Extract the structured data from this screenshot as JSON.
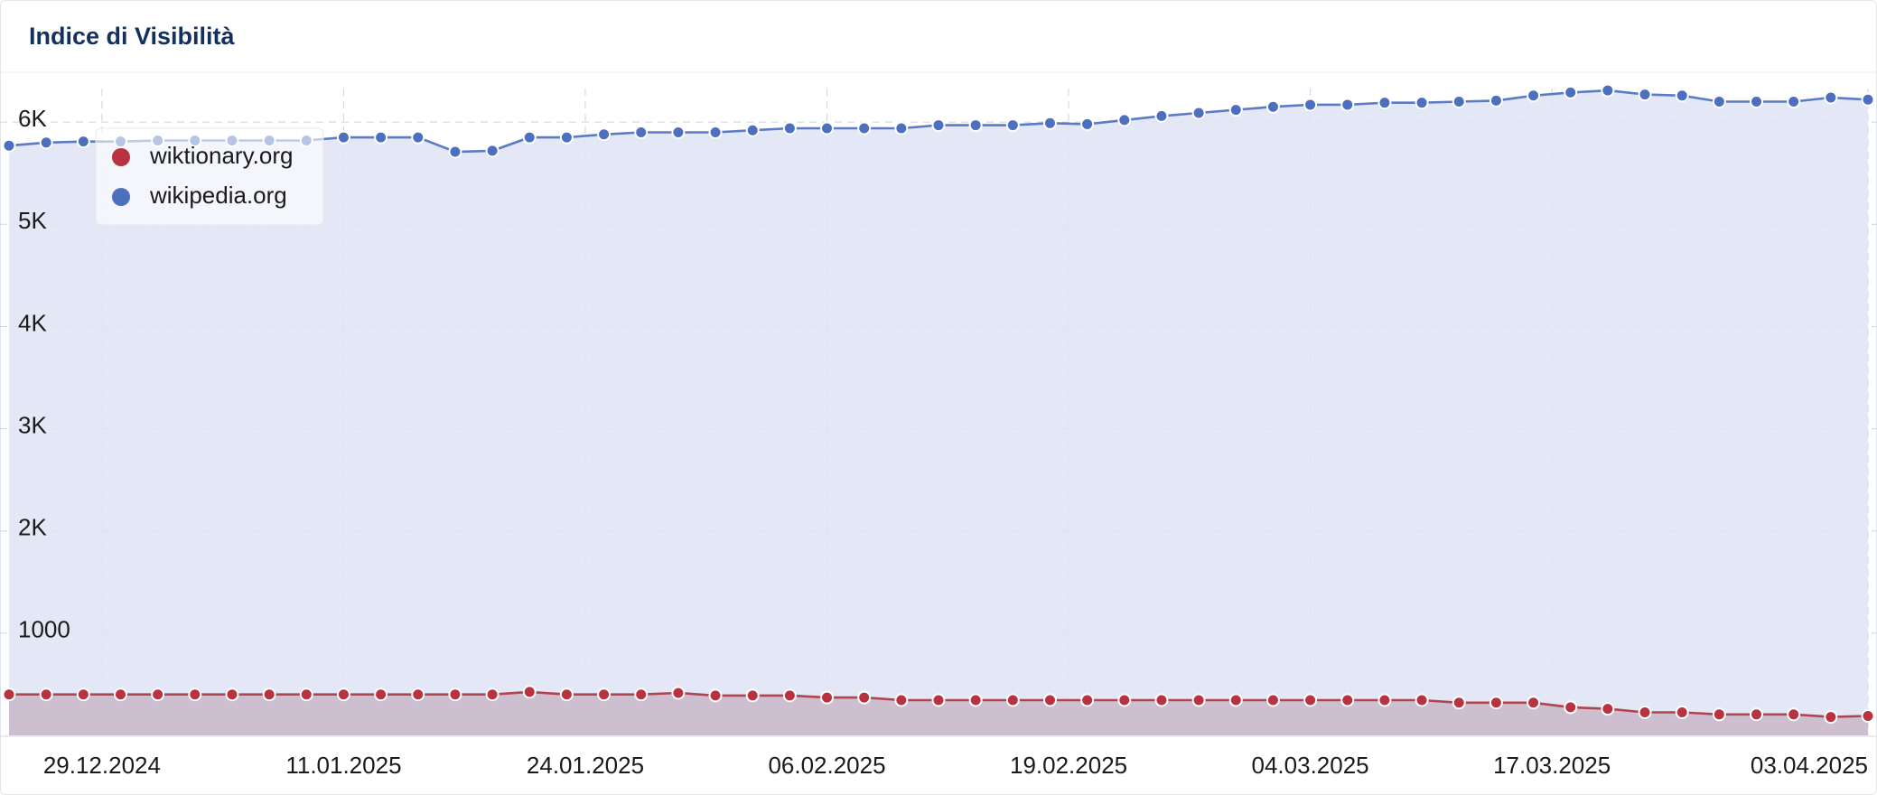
{
  "chart_data": {
    "type": "line",
    "title": "Indice di Visibilità",
    "x": [
      "24.12.2024",
      "26.12.2024",
      "28.12.2024",
      "30.12.2024",
      "01.01.2025",
      "03.01.2025",
      "05.01.2025",
      "07.01.2025",
      "09.01.2025",
      "11.01.2025",
      "13.01.2025",
      "15.01.2025",
      "17.01.2025",
      "19.01.2025",
      "21.01.2025",
      "23.01.2025",
      "25.01.2025",
      "27.01.2025",
      "29.01.2025",
      "31.01.2025",
      "02.02.2025",
      "04.02.2025",
      "06.02.2025",
      "08.02.2025",
      "10.02.2025",
      "12.02.2025",
      "14.02.2025",
      "16.02.2025",
      "18.02.2025",
      "20.02.2025",
      "22.02.2025",
      "24.02.2025",
      "26.02.2025",
      "28.02.2025",
      "02.03.2025",
      "04.03.2025",
      "06.03.2025",
      "08.03.2025",
      "10.03.2025",
      "12.03.2025",
      "14.03.2025",
      "16.03.2025",
      "18.03.2025",
      "20.03.2025",
      "22.03.2025",
      "24.03.2025",
      "26.03.2025",
      "28.03.2025",
      "30.03.2025",
      "01.04.2025",
      "03.04.2025"
    ],
    "series": [
      {
        "name": "wiktionary.org",
        "color": "#b8333f",
        "line_color": "#b0444f",
        "area_color": "#c9b7c9",
        "values": [
          400,
          400,
          400,
          400,
          400,
          400,
          400,
          400,
          400,
          400,
          400,
          400,
          400,
          400,
          425,
          400,
          400,
          400,
          415,
          390,
          390,
          390,
          370,
          370,
          345,
          345,
          345,
          345,
          345,
          345,
          345,
          345,
          345,
          345,
          345,
          345,
          345,
          345,
          345,
          320,
          320,
          320,
          275,
          260,
          225,
          225,
          205,
          205,
          205,
          180,
          190
        ]
      },
      {
        "name": "wikipedia.org",
        "color": "#4d6fbf",
        "line_color": "#5b7bc4",
        "area_color": "#dfe4f4",
        "values": [
          5770,
          5800,
          5810,
          5810,
          5820,
          5820,
          5820,
          5820,
          5820,
          5850,
          5850,
          5850,
          5710,
          5720,
          5850,
          5850,
          5880,
          5900,
          5900,
          5900,
          5920,
          5940,
          5940,
          5940,
          5940,
          5970,
          5970,
          5970,
          5990,
          5980,
          6020,
          6060,
          6090,
          6120,
          6150,
          6170,
          6170,
          6190,
          6190,
          6200,
          6210,
          6260,
          6290,
          6310,
          6270,
          6260,
          6200,
          6200,
          6200,
          6240,
          6220
        ]
      }
    ],
    "xlim": [
      "24.12.2024",
      "03.04.2025"
    ],
    "xticks": [
      "29.12.2024",
      "11.01.2025",
      "24.01.2025",
      "06.02.2025",
      "19.02.2025",
      "04.03.2025",
      "17.03.2025",
      "03.04.2025"
    ],
    "ylim": [
      0,
      6470
    ],
    "yticks": [
      1000,
      {
        "value": 2000,
        "label": "2K"
      },
      {
        "value": 3000,
        "label": "3K"
      },
      {
        "value": 4000,
        "label": "4K"
      },
      {
        "value": 5000,
        "label": "5K"
      },
      {
        "value": 6000,
        "label": "6K"
      }
    ],
    "grid": true,
    "legend": "top-left"
  }
}
